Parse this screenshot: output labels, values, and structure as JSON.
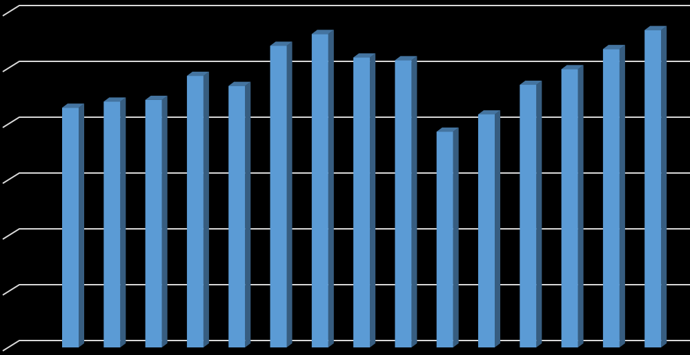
{
  "chart_data": {
    "type": "bar3d",
    "values": [
      4.17,
      4.28,
      4.31,
      4.74,
      4.56,
      5.28,
      5.49,
      5.07,
      5.02,
      3.74,
      4.05,
      4.58,
      4.86,
      5.22,
      5.56
    ],
    "color": "#5b9bd5",
    "ylim": [
      0,
      6
    ],
    "yticks": [
      0,
      1,
      2,
      3,
      4,
      5,
      6
    ],
    "grid": true
  }
}
